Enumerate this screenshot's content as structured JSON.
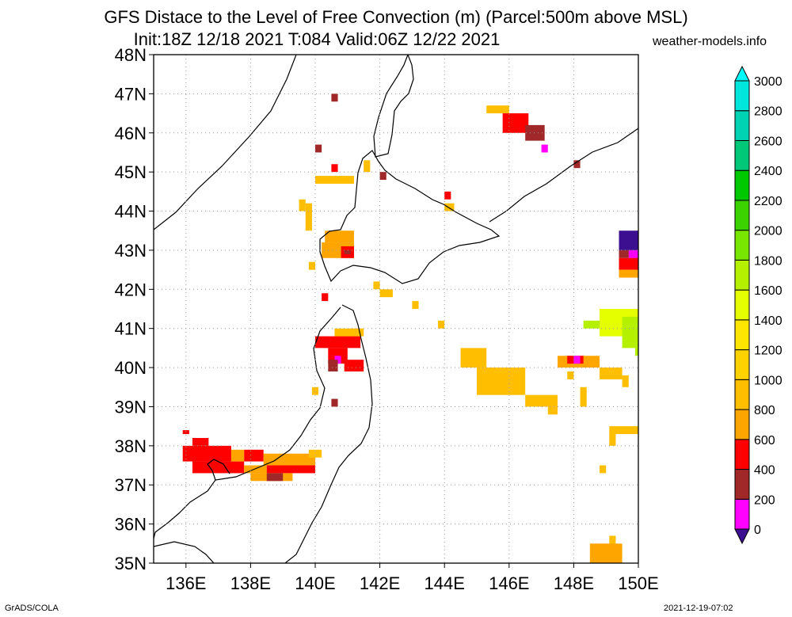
{
  "title": {
    "line1": "GFS Distace to the Level of Free Convection (m) (Parcel:500m above MSL)",
    "line2": "Init:18Z 12/18 2021 T:084 Valid:06Z 12/22 2021",
    "site": "weather-models.info"
  },
  "axes": {
    "lat_labels": [
      "35N",
      "36N",
      "37N",
      "38N",
      "39N",
      "40N",
      "41N",
      "42N",
      "43N",
      "44N",
      "45N",
      "46N",
      "47N",
      "48N"
    ],
    "lat_values": [
      35,
      36,
      37,
      38,
      39,
      40,
      41,
      42,
      43,
      44,
      45,
      46,
      47,
      48
    ],
    "lon_labels": [
      "136E",
      "138E",
      "140E",
      "142E",
      "144E",
      "146E",
      "148E",
      "150E"
    ],
    "lon_values": [
      136,
      138,
      140,
      142,
      144,
      146,
      148,
      150
    ],
    "lon_range": [
      135,
      150
    ],
    "lat_range": [
      35,
      48
    ]
  },
  "colorbar": {
    "labels": [
      "0",
      "200",
      "400",
      "600",
      "800",
      "1000",
      "1200",
      "1400",
      "1600",
      "1800",
      "2000",
      "2200",
      "2400",
      "2600",
      "2800",
      "3000"
    ],
    "colors": [
      "#3b0f8f",
      "#ff00ff",
      "#a02828",
      "#ff0000",
      "#ffa500",
      "#ffbe00",
      "#ffd200",
      "#ffe600",
      "#e6ff00",
      "#b4f000",
      "#78e600",
      "#3cd200",
      "#00c800",
      "#00c878",
      "#00d2b4",
      "#00e6dc",
      "#00fafa"
    ]
  },
  "footer": {
    "left": "GrADS/COLA",
    "right": "2021-12-19-07:02"
  },
  "cells": [
    [
      135.9,
      38.4,
      136.1,
      38.3,
      "#ff0000"
    ],
    [
      136.2,
      38.2,
      136.7,
      38.0,
      "#ff0000"
    ],
    [
      135.9,
      38.0,
      137.4,
      37.6,
      "#ff0000"
    ],
    [
      136.2,
      37.6,
      137.8,
      37.3,
      "#ff0000"
    ],
    [
      137.4,
      37.9,
      137.8,
      37.6,
      "#ffa500"
    ],
    [
      137.8,
      37.9,
      138.4,
      37.6,
      "#ff0000"
    ],
    [
      138.4,
      37.8,
      140.0,
      37.5,
      "#ffa500"
    ],
    [
      137.8,
      37.5,
      138.5,
      37.3,
      "#ffa500"
    ],
    [
      138.5,
      37.5,
      140.0,
      37.3,
      "#ff0000"
    ],
    [
      138.0,
      37.3,
      139.3,
      37.1,
      "#ffa500"
    ],
    [
      138.5,
      37.3,
      139.0,
      37.1,
      "#a02828"
    ],
    [
      139.8,
      37.9,
      140.2,
      37.7,
      "#ffbe00"
    ],
    [
      140.0,
      40.8,
      141.4,
      40.5,
      "#ff0000"
    ],
    [
      140.4,
      40.5,
      141.0,
      40.1,
      "#ff0000"
    ],
    [
      140.6,
      40.3,
      140.8,
      40.1,
      "#ff00ff"
    ],
    [
      140.4,
      40.2,
      140.7,
      39.9,
      "#a02828"
    ],
    [
      140.9,
      40.2,
      141.5,
      39.9,
      "#ff0000"
    ],
    [
      140.6,
      41.0,
      141.5,
      40.8,
      "#ffbe00"
    ],
    [
      139.9,
      39.5,
      140.1,
      39.3,
      "#ffbe00"
    ],
    [
      140.5,
      39.2,
      140.7,
      39.0,
      "#a02828"
    ],
    [
      140.2,
      41.9,
      140.4,
      41.7,
      "#ff0000"
    ],
    [
      139.8,
      42.7,
      140.0,
      42.5,
      "#ffbe00"
    ],
    [
      140.3,
      43.5,
      141.2,
      43.2,
      "#ffa500"
    ],
    [
      140.2,
      43.2,
      141.2,
      42.8,
      "#ffa500"
    ],
    [
      140.8,
      43.1,
      141.2,
      42.8,
      "#ff0000"
    ],
    [
      140.9,
      43.0,
      141.1,
      42.9,
      "#a02828"
    ],
    [
      139.5,
      44.3,
      139.7,
      44.0,
      "#ffbe00"
    ],
    [
      139.7,
      44.2,
      139.9,
      43.5,
      "#ffbe00"
    ],
    [
      140.0,
      44.9,
      141.2,
      44.7,
      "#ffbe00"
    ],
    [
      140.5,
      45.2,
      140.7,
      45.0,
      "#ff0000"
    ],
    [
      140.0,
      45.7,
      140.2,
      45.5,
      "#a02828"
    ],
    [
      140.5,
      47.0,
      140.7,
      46.8,
      "#a02828"
    ],
    [
      141.5,
      45.3,
      141.7,
      45.0,
      "#ffbe00"
    ],
    [
      142.0,
      45.0,
      142.2,
      44.8,
      "#a02828"
    ],
    [
      141.8,
      42.2,
      142.0,
      42.0,
      "#ffbe00"
    ],
    [
      142.0,
      42.0,
      142.4,
      41.8,
      "#ffbe00"
    ],
    [
      143.0,
      41.7,
      143.2,
      41.5,
      "#ffbe00"
    ],
    [
      143.8,
      41.2,
      144.0,
      41.0,
      "#ffbe00"
    ],
    [
      144.0,
      44.5,
      144.2,
      44.3,
      "#ff0000"
    ],
    [
      144.0,
      44.2,
      144.3,
      44.0,
      "#ffbe00"
    ],
    [
      145.3,
      46.7,
      146.0,
      46.5,
      "#ffbe00"
    ],
    [
      145.8,
      46.5,
      146.6,
      46.0,
      "#ff0000"
    ],
    [
      146.5,
      46.2,
      147.1,
      45.8,
      "#a02828"
    ],
    [
      147.0,
      45.7,
      147.2,
      45.5,
      "#ff00ff"
    ],
    [
      148.0,
      45.3,
      148.2,
      45.1,
      "#a02828"
    ],
    [
      144.5,
      40.5,
      145.3,
      40.0,
      "#ffbe00"
    ],
    [
      145.0,
      40.0,
      146.5,
      39.3,
      "#ffbe00"
    ],
    [
      146.5,
      39.3,
      147.5,
      39.0,
      "#ffbe00"
    ],
    [
      147.2,
      39.0,
      147.5,
      38.8,
      "#ffbe00"
    ],
    [
      147.5,
      40.3,
      148.8,
      40.0,
      "#ffa500"
    ],
    [
      147.8,
      40.3,
      148.3,
      40.1,
      "#ff0000"
    ],
    [
      148.0,
      40.3,
      148.2,
      40.1,
      "#ff00ff"
    ],
    [
      147.8,
      39.9,
      148.0,
      39.7,
      "#ffbe00"
    ],
    [
      148.2,
      39.5,
      148.4,
      39.0,
      "#ffbe00"
    ],
    [
      148.8,
      40.0,
      149.5,
      39.7,
      "#ffbe00"
    ],
    [
      149.5,
      39.8,
      149.7,
      39.5,
      "#ffbe00"
    ],
    [
      148.3,
      41.2,
      149.0,
      41.0,
      "#b4f000"
    ],
    [
      148.8,
      41.5,
      150.0,
      40.8,
      "#e6ff00"
    ],
    [
      149.5,
      41.3,
      150.0,
      40.5,
      "#b4f000"
    ],
    [
      149.9,
      40.5,
      150.0,
      40.3,
      "#b4f000"
    ],
    [
      149.4,
      43.5,
      150.0,
      43.0,
      "#3b0f8f"
    ],
    [
      149.4,
      43.0,
      150.0,
      42.8,
      "#a02828"
    ],
    [
      149.7,
      43.0,
      150.0,
      42.8,
      "#ff00ff"
    ],
    [
      149.4,
      42.8,
      150.0,
      42.5,
      "#ff0000"
    ],
    [
      149.4,
      42.5,
      150.0,
      42.3,
      "#ffa500"
    ],
    [
      149.1,
      38.5,
      150.0,
      38.3,
      "#ffbe00"
    ],
    [
      149.1,
      38.3,
      149.3,
      38.0,
      "#ffbe00"
    ],
    [
      148.8,
      37.5,
      149.0,
      37.3,
      "#ffbe00"
    ],
    [
      149.1,
      35.7,
      149.3,
      35.4,
      "#ffbe00"
    ],
    [
      148.5,
      35.5,
      149.5,
      35.0,
      "#ffa500"
    ]
  ]
}
